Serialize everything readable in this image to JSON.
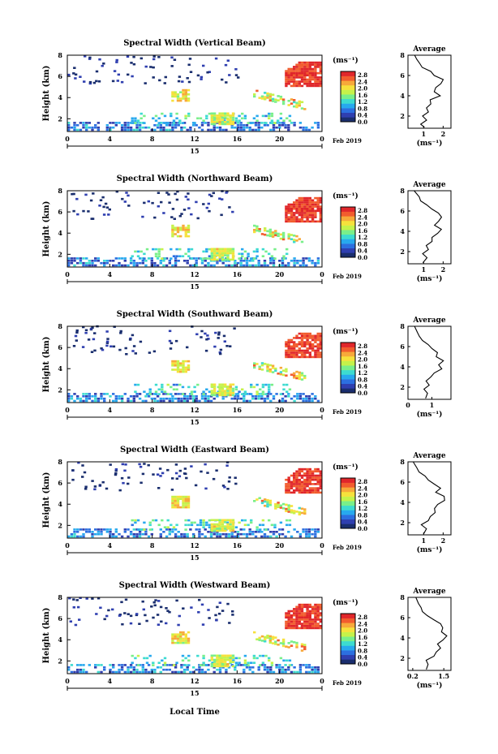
{
  "chart_data": [
    {
      "type": "heatmap",
      "title": "Spectral Width (Vertical Beam)",
      "ylabel": "Height (km)",
      "colorbar_unit": "(ms⁻¹)",
      "colorbar_ticks": [
        "0.0",
        "0.4",
        "0.8",
        "1.2",
        "1.6",
        "2.0",
        "2.4",
        "2.8"
      ],
      "clim": [
        0,
        3.0
      ],
      "xticks": [
        "0",
        "4",
        "8",
        "12",
        "16",
        "20",
        "0"
      ],
      "xlim": [
        0,
        24
      ],
      "date_day": "15",
      "date_label": "Feb 2019",
      "yticks": [
        "2",
        "4",
        "6",
        "8"
      ],
      "ylim": [
        0.8,
        8.0
      ],
      "average": {
        "title": "Average",
        "xlabel": "(ms⁻¹)",
        "xticks": [
          "1",
          "2"
        ],
        "xlim": [
          0.2,
          2.4
        ],
        "yticks": [
          "2",
          "4",
          "6",
          "8"
        ],
        "ylim": [
          0.8,
          8.0
        ],
        "profile": [
          [
            1.0,
            0.9
          ],
          [
            0.8,
            1.2
          ],
          [
            1.1,
            1.6
          ],
          [
            0.9,
            2.0
          ],
          [
            1.2,
            2.4
          ],
          [
            1.1,
            2.8
          ],
          [
            1.4,
            3.2
          ],
          [
            1.3,
            3.6
          ],
          [
            1.8,
            4.0
          ],
          [
            1.5,
            4.4
          ],
          [
            1.7,
            4.8
          ],
          [
            1.9,
            5.2
          ],
          [
            2.0,
            5.6
          ],
          [
            1.6,
            6.0
          ],
          [
            1.3,
            6.4
          ],
          [
            1.0,
            6.8
          ],
          [
            0.8,
            7.2
          ],
          [
            0.6,
            7.6
          ],
          [
            0.5,
            8.0
          ]
        ]
      }
    },
    {
      "type": "heatmap",
      "title": "Spectral Width (Northward Beam)",
      "ylabel": "Height (km)",
      "colorbar_unit": "(ms⁻¹)",
      "colorbar_ticks": [
        "0.0",
        "0.4",
        "0.8",
        "1.2",
        "1.6",
        "2.0",
        "2.4",
        "2.8"
      ],
      "clim": [
        0,
        3.0
      ],
      "xticks": [
        "0",
        "4",
        "8",
        "12",
        "16",
        "20",
        "0"
      ],
      "xlim": [
        0,
        24
      ],
      "date_day": "15",
      "date_label": "Feb 2019",
      "yticks": [
        "2",
        "4",
        "6",
        "8"
      ],
      "ylim": [
        0.8,
        8.0
      ],
      "average": {
        "title": "Average",
        "xlabel": "(ms⁻¹)",
        "xticks": [
          "1",
          "2"
        ],
        "xlim": [
          0.2,
          2.4
        ],
        "yticks": [
          "2",
          "4",
          "6",
          "8"
        ],
        "ylim": [
          0.8,
          8.0
        ],
        "profile": [
          [
            1.0,
            0.9
          ],
          [
            1.2,
            1.4
          ],
          [
            1.0,
            1.8
          ],
          [
            1.3,
            2.2
          ],
          [
            1.2,
            2.6
          ],
          [
            1.5,
            3.0
          ],
          [
            1.4,
            3.4
          ],
          [
            1.7,
            3.8
          ],
          [
            1.9,
            4.2
          ],
          [
            1.6,
            4.6
          ],
          [
            1.8,
            5.0
          ],
          [
            2.0,
            5.4
          ],
          [
            1.8,
            5.8
          ],
          [
            1.4,
            6.2
          ],
          [
            1.1,
            6.6
          ],
          [
            0.9,
            7.0
          ],
          [
            0.7,
            7.4
          ],
          [
            0.5,
            8.0
          ]
        ]
      }
    },
    {
      "type": "heatmap",
      "title": "Spectral Width (Southward Beam)",
      "ylabel": "Height (km)",
      "colorbar_unit": "(ms⁻¹)",
      "colorbar_ticks": [
        "0.0",
        "0.4",
        "0.8",
        "1.2",
        "1.6",
        "2.0",
        "2.4",
        "2.8"
      ],
      "clim": [
        0,
        3.0
      ],
      "xticks": [
        "0",
        "4",
        "8",
        "12",
        "16",
        "20",
        "0"
      ],
      "xlim": [
        0,
        24
      ],
      "date_day": "15",
      "date_label": "Feb 2019",
      "yticks": [
        "2",
        "4",
        "6",
        "8"
      ],
      "ylim": [
        0.8,
        8.0
      ],
      "average": {
        "title": "Average",
        "xlabel": "(ms⁻¹)",
        "xticks": [
          "0",
          "1"
        ],
        "xlim": [
          0.0,
          1.8
        ],
        "yticks": [
          "2",
          "4",
          "6",
          "8"
        ],
        "ylim": [
          0.8,
          8.0
        ],
        "profile": [
          [
            0.7,
            0.9
          ],
          [
            0.8,
            1.4
          ],
          [
            0.6,
            1.8
          ],
          [
            0.9,
            2.2
          ],
          [
            0.8,
            2.6
          ],
          [
            1.0,
            3.0
          ],
          [
            1.1,
            3.4
          ],
          [
            1.4,
            3.8
          ],
          [
            1.3,
            4.2
          ],
          [
            1.5,
            4.6
          ],
          [
            1.2,
            5.0
          ],
          [
            1.3,
            5.4
          ],
          [
            1.0,
            5.8
          ],
          [
            0.8,
            6.2
          ],
          [
            0.6,
            6.6
          ],
          [
            0.5,
            7.0
          ],
          [
            0.4,
            7.4
          ],
          [
            0.3,
            8.0
          ]
        ]
      }
    },
    {
      "type": "heatmap",
      "title": "Spectral Width (Eastward Beam)",
      "ylabel": "Height (km)",
      "colorbar_unit": "(ms⁻¹)",
      "colorbar_ticks": [
        "0.0",
        "0.4",
        "0.8",
        "1.2",
        "1.6",
        "2.0",
        "2.4",
        "2.8"
      ],
      "clim": [
        0,
        3.0
      ],
      "xticks": [
        "0",
        "4",
        "8",
        "12",
        "16",
        "20",
        "0"
      ],
      "xlim": [
        0,
        24
      ],
      "date_day": "15",
      "date_label": "Feb 2019",
      "yticks": [
        "2",
        "4",
        "6",
        "8"
      ],
      "ylim": [
        0.8,
        8.0
      ],
      "average": {
        "title": "Average",
        "xlabel": "(ms⁻¹)",
        "xticks": [
          "1",
          "2"
        ],
        "xlim": [
          0.2,
          2.4
        ],
        "yticks": [
          "2",
          "4",
          "6",
          "8"
        ],
        "ylim": [
          0.8,
          8.0
        ],
        "profile": [
          [
            1.0,
            0.9
          ],
          [
            1.1,
            1.4
          ],
          [
            0.9,
            1.8
          ],
          [
            1.2,
            2.2
          ],
          [
            1.3,
            2.6
          ],
          [
            1.6,
            3.0
          ],
          [
            1.5,
            3.4
          ],
          [
            1.8,
            3.8
          ],
          [
            2.0,
            4.2
          ],
          [
            2.1,
            4.6
          ],
          [
            1.7,
            5.0
          ],
          [
            1.9,
            5.4
          ],
          [
            1.6,
            5.8
          ],
          [
            1.3,
            6.2
          ],
          [
            1.0,
            6.6
          ],
          [
            0.8,
            7.0
          ],
          [
            0.6,
            7.4
          ],
          [
            0.5,
            8.0
          ]
        ]
      }
    },
    {
      "type": "heatmap",
      "title": "Spectral Width (Westward Beam)",
      "ylabel": "Height (km)",
      "colorbar_unit": "(ms⁻¹)",
      "colorbar_ticks": [
        "0.0",
        "0.4",
        "0.8",
        "1.2",
        "1.6",
        "2.0",
        "2.4",
        "2.8"
      ],
      "clim": [
        0,
        3.0
      ],
      "xticks": [
        "0",
        "4",
        "8",
        "12",
        "16",
        "20",
        "0"
      ],
      "xlim": [
        0,
        24
      ],
      "date_day": "15",
      "date_label": "Feb 2019",
      "yticks": [
        "2",
        "4",
        "6",
        "8"
      ],
      "ylim": [
        0.8,
        8.0
      ],
      "average": {
        "title": "Average",
        "xlabel": "(ms⁻¹)",
        "xticks": [
          "0.2",
          "1.5"
        ],
        "xlim": [
          0.0,
          1.8
        ],
        "yticks": [
          "2",
          "4",
          "6",
          "8"
        ],
        "ylim": [
          0.8,
          8.0
        ],
        "profile": [
          [
            0.8,
            0.9
          ],
          [
            0.9,
            1.4
          ],
          [
            0.8,
            1.8
          ],
          [
            1.1,
            2.2
          ],
          [
            1.2,
            2.6
          ],
          [
            1.4,
            3.0
          ],
          [
            1.3,
            3.4
          ],
          [
            1.5,
            3.8
          ],
          [
            1.6,
            4.2
          ],
          [
            1.4,
            4.6
          ],
          [
            1.5,
            5.0
          ],
          [
            1.3,
            5.4
          ],
          [
            1.1,
            5.8
          ],
          [
            0.8,
            6.2
          ],
          [
            0.6,
            6.6
          ],
          [
            0.5,
            7.0
          ],
          [
            0.4,
            7.4
          ],
          [
            0.3,
            8.0
          ]
        ]
      }
    }
  ],
  "xlabel": "Local Time",
  "colormap": [
    "#1a2e6e",
    "#2f3fb0",
    "#2c6fe0",
    "#27a9ee",
    "#3ddbd0",
    "#79ef8a",
    "#c5f24a",
    "#f6e13c",
    "#f7a93a",
    "#f25c2e",
    "#e0262a"
  ]
}
